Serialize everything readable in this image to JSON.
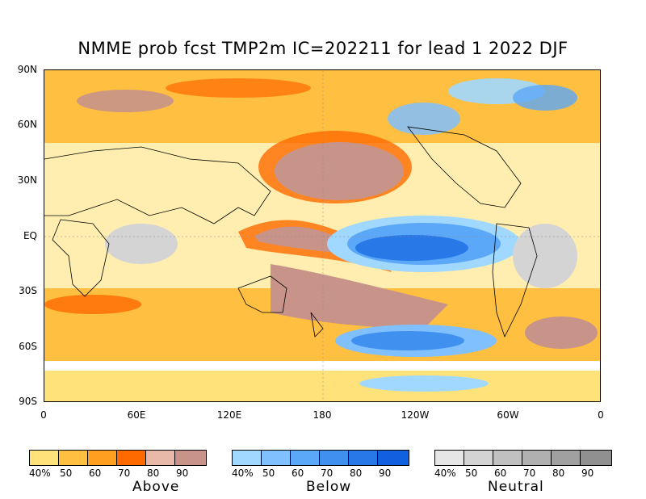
{
  "title": "NMME prob fcst TMP2m IC=202211 for lead 1 2022 DJF",
  "lat_labels": [
    "90N",
    "60N",
    "30N",
    "EQ",
    "30S",
    "60S",
    "90S"
  ],
  "lon_labels": [
    "0",
    "60E",
    "120E",
    "180",
    "120W",
    "60W",
    "0"
  ],
  "legends": [
    {
      "name": "Above",
      "ticks": [
        "40%",
        "50",
        "60",
        "70",
        "80",
        "90"
      ],
      "colors": [
        "#ffe37a",
        "#ffbf40",
        "#ffa020",
        "#ff6a00",
        "#e8b8a8",
        "#c8948a"
      ]
    },
    {
      "name": "Below",
      "ticks": [
        "40%",
        "50",
        "60",
        "70",
        "80",
        "90"
      ],
      "colors": [
        "#a0d8ff",
        "#80c0ff",
        "#5ca8f8",
        "#4090f0",
        "#2878e8",
        "#1060e0"
      ]
    },
    {
      "name": "Neutral",
      "ticks": [
        "40%",
        "50",
        "60",
        "70",
        "80",
        "90"
      ],
      "colors": [
        "#e6e6e6",
        "#d4d4d4",
        "#c0c0c0",
        "#b0b0b0",
        "#a0a0a0",
        "#909090"
      ]
    }
  ],
  "map_colors": {
    "ocean_base": "#ffffff",
    "above_40": "#ffe37a",
    "above_50": "#ffbf40",
    "above_60": "#ffa020",
    "above_70": "#ff6a00",
    "above_80": "#e8b8a8",
    "above_90": "#c8948a",
    "below_40": "#a0d8ff",
    "below_60": "#5ca8f8",
    "below_80": "#2878e8",
    "neutral": "#c8c8c8"
  }
}
